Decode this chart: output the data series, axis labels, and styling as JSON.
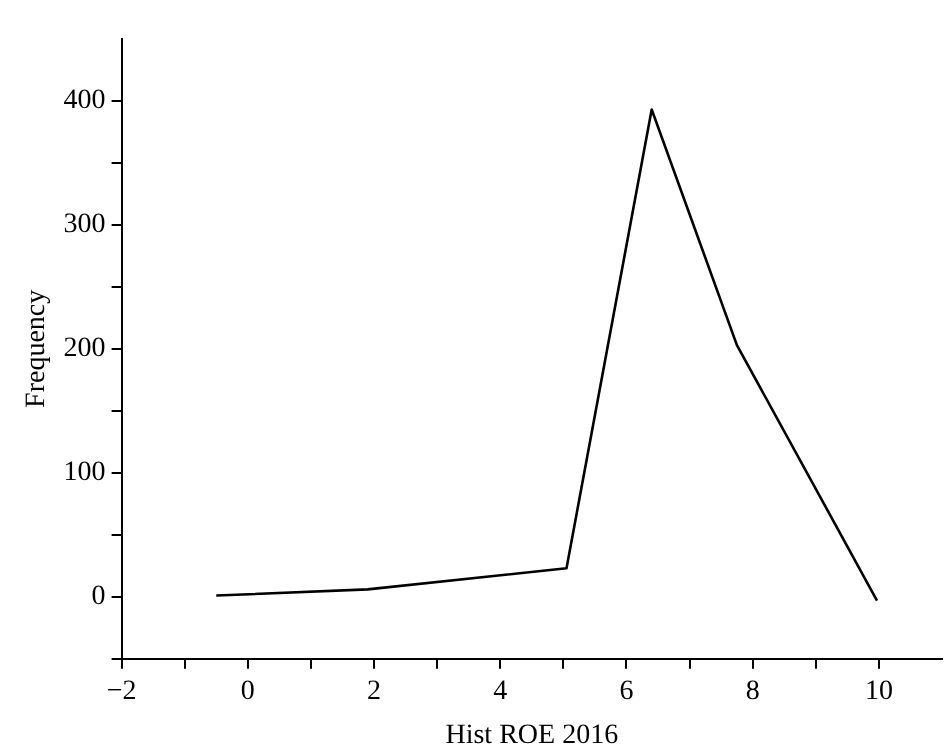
{
  "chart_data": {
    "type": "line",
    "xlabel": "Hist ROE 2016",
    "ylabel": "Frequency",
    "x": [
      -0.5,
      1.9,
      5.05,
      6.4,
      7.75,
      9.97
    ],
    "series": [
      {
        "color": "#000000",
        "values": [
          1,
          6,
          23,
          393,
          203,
          -3
        ]
      }
    ],
    "xlim": [
      -2,
      11
    ],
    "xticks": [
      -2,
      {
        "value": -1,
        "label": null
      },
      0,
      {
        "value": 1,
        "label": null
      },
      2,
      {
        "value": 3,
        "label": null
      },
      4,
      {
        "value": 5,
        "label": null
      },
      6,
      {
        "value": 7,
        "label": null
      },
      8,
      {
        "value": 9,
        "label": null
      },
      10
    ],
    "ylim": [
      -50,
      450
    ],
    "yticks": [
      {
        "value": -50,
        "label": null
      },
      0,
      {
        "value": 50,
        "label": null
      },
      100,
      {
        "value": 150,
        "label": null
      },
      200,
      {
        "value": 250,
        "label": null
      },
      300,
      {
        "value": 350,
        "label": null
      },
      400
    ],
    "grid": false,
    "legend": false,
    "marker": "none",
    "line_style": "solid"
  }
}
